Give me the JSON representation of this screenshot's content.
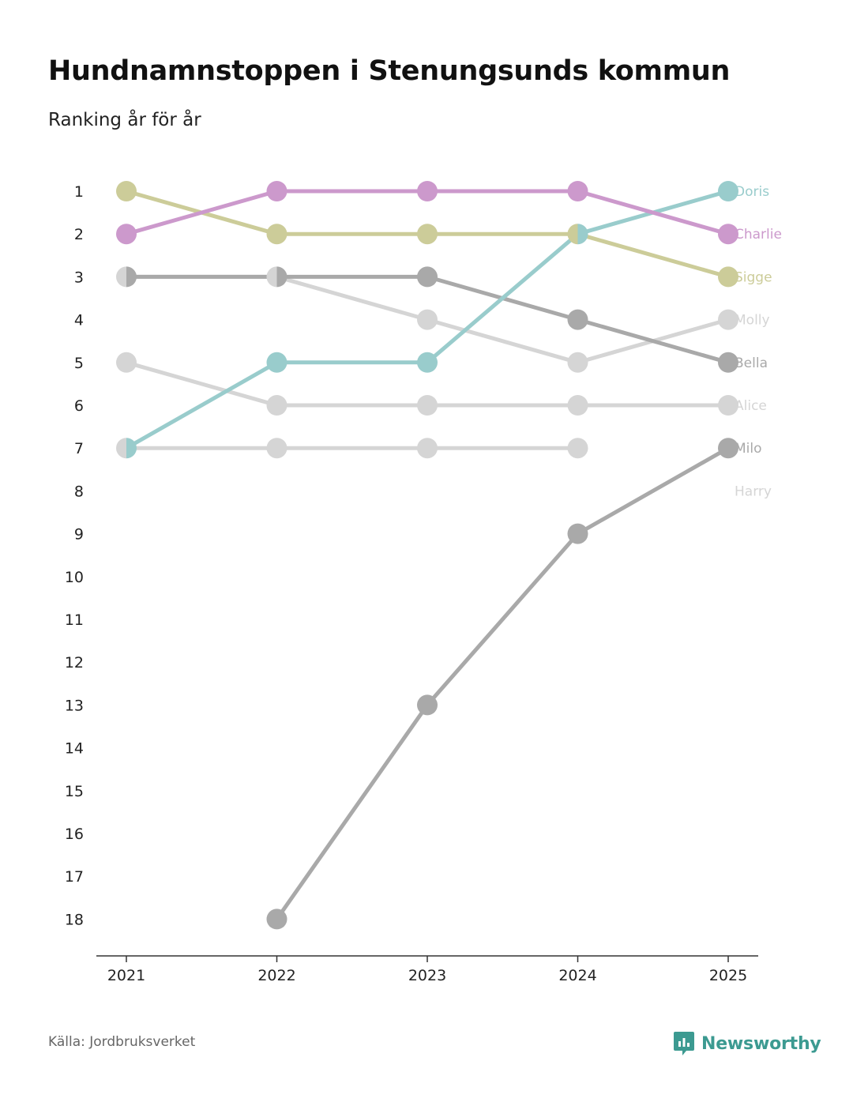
{
  "title": "Hundnamnstoppen i Stenungsunds kommun",
  "subtitle": "Ranking år för år",
  "source": "Källa: Jordbruksverket",
  "brand": "Newsworthy",
  "colors": {
    "brand": "#3c9a91"
  },
  "chart_data": {
    "type": "line",
    "title": "Hundnamnstoppen i Stenungsunds kommun",
    "subtitle": "Ranking år för år",
    "xlabel": "",
    "ylabel": "",
    "x": [
      "2021",
      "2022",
      "2023",
      "2024",
      "2025"
    ],
    "y_ticks": [
      1,
      2,
      3,
      4,
      5,
      6,
      7,
      8,
      9,
      10,
      11,
      12,
      13,
      14,
      15,
      16,
      17,
      18
    ],
    "ylim": [
      1,
      18
    ],
    "y_inverted": true,
    "series": [
      {
        "name": "Alice",
        "color": "#d5d5d5",
        "values": [
          5,
          6,
          6,
          6,
          6
        ]
      },
      {
        "name": "Harry",
        "color": "#d5d5d5",
        "values": [
          7,
          7,
          7,
          7,
          null
        ]
      },
      {
        "name": "Molly",
        "color": "#d5d5d5",
        "values": [
          3,
          3,
          4,
          5,
          4
        ]
      },
      {
        "name": "Milo",
        "color": "#a9a9a9",
        "values": [
          null,
          18,
          13,
          9,
          7
        ]
      },
      {
        "name": "Bella",
        "color": "#a9a9a9",
        "values": [
          3,
          3,
          3,
          4,
          5
        ]
      },
      {
        "name": "Sigge",
        "color": "#cccc99",
        "values": [
          1,
          2,
          2,
          2,
          3
        ]
      },
      {
        "name": "Doris",
        "color": "#99cccc",
        "values": [
          7,
          5,
          5,
          2,
          1
        ]
      },
      {
        "name": "Charlie",
        "color": "#cc99cc",
        "values": [
          2,
          1,
          1,
          1,
          2
        ]
      }
    ],
    "end_labels": [
      {
        "name": "Doris",
        "rank": 1,
        "color": "#99cccc"
      },
      {
        "name": "Charlie",
        "rank": 2,
        "color": "#cc99cc"
      },
      {
        "name": "Sigge",
        "rank": 3,
        "color": "#cccc99"
      },
      {
        "name": "Molly",
        "rank": 4,
        "color": "#d5d5d5"
      },
      {
        "name": "Bella",
        "rank": 5,
        "color": "#a9a9a9"
      },
      {
        "name": "Alice",
        "rank": 6,
        "color": "#d5d5d5"
      },
      {
        "name": "Milo",
        "rank": 7,
        "color": "#a9a9a9"
      },
      {
        "name": "Harry",
        "rank": 8,
        "color": "#d5d5d5"
      }
    ]
  }
}
